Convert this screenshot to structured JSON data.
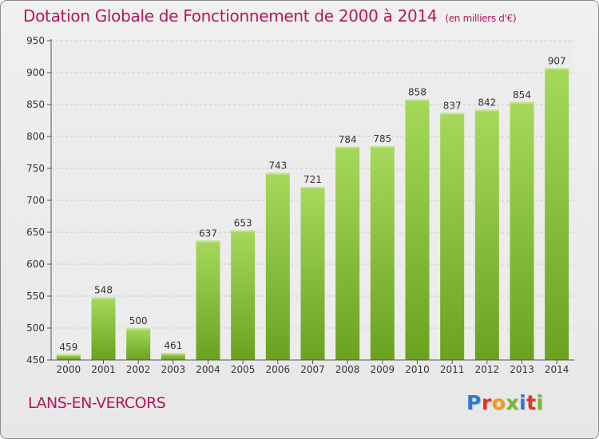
{
  "header": {
    "title": "Dotation Globale de Fonctionnement de 2000 à 2014",
    "unit": "(en milliers d'€)"
  },
  "footer": {
    "place": "LANS-EN-VERCORS",
    "logo": "Proxiti",
    "logo_colors": [
      "#2a7bd3",
      "#e6332a",
      "#f39c12",
      "#7cb82f",
      "#2a7bd3",
      "#e6332a",
      "#7cb82f"
    ]
  },
  "chart_data": {
    "type": "bar",
    "categories": [
      "2000",
      "2001",
      "2002",
      "2003",
      "2004",
      "2005",
      "2006",
      "2007",
      "2008",
      "2009",
      "2010",
      "2011",
      "2012",
      "2013",
      "2014"
    ],
    "values": [
      459,
      548,
      500,
      461,
      637,
      653,
      743,
      721,
      784,
      785,
      858,
      837,
      842,
      854,
      907
    ],
    "ylim": [
      450,
      950
    ],
    "yticks": [
      450,
      500,
      550,
      600,
      650,
      700,
      750,
      800,
      850,
      900,
      950
    ],
    "grid": true,
    "bar_color": "#8dc63f"
  }
}
